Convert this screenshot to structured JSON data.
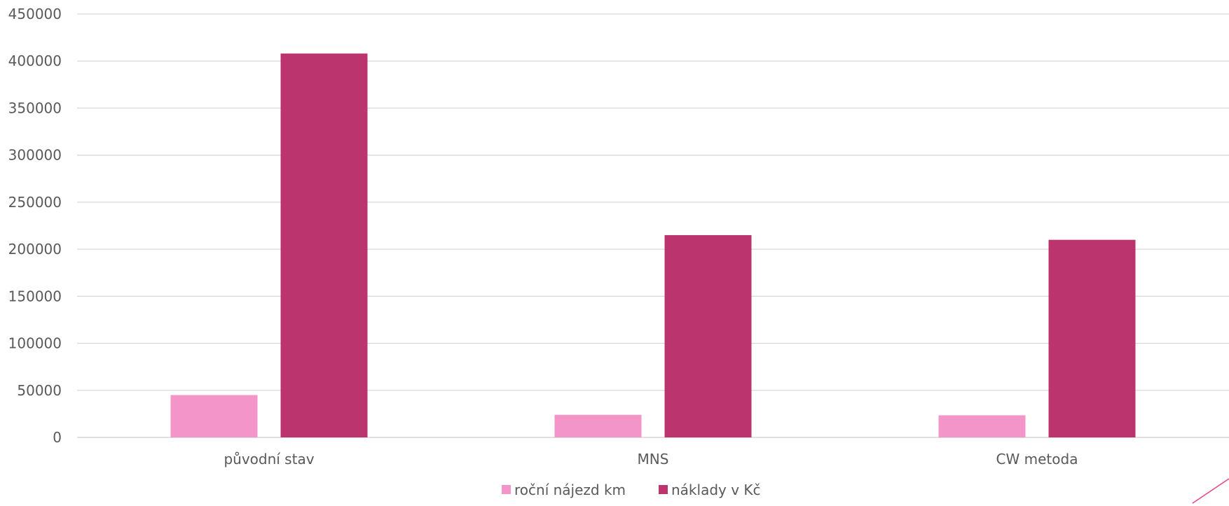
{
  "chart_data": {
    "type": "bar",
    "categories": [
      "původní stav",
      "MNS",
      "CW metoda"
    ],
    "series": [
      {
        "name": "roční nájezd km",
        "values": [
          45000,
          24000,
          23500
        ],
        "color": "#F495C9"
      },
      {
        "name": "náklady v Kč",
        "values": [
          408000,
          215000,
          210000
        ],
        "color": "#BC346D"
      }
    ],
    "ylim": [
      0,
      450000
    ],
    "yticks": [
      0,
      50000,
      100000,
      150000,
      200000,
      250000,
      300000,
      350000,
      400000,
      450000
    ],
    "grid": true,
    "legend": "bottom",
    "title": "",
    "xlabel": "",
    "ylabel": ""
  },
  "decoration": {
    "corner_line_color": "#E0458A"
  }
}
